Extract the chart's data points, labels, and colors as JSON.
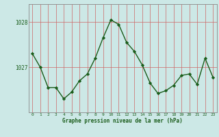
{
  "x": [
    0,
    1,
    2,
    3,
    4,
    5,
    6,
    7,
    8,
    9,
    10,
    11,
    12,
    13,
    14,
    15,
    16,
    17,
    18,
    19,
    20,
    21,
    22,
    23
  ],
  "y": [
    1027.3,
    1027.0,
    1026.55,
    1026.55,
    1026.3,
    1026.45,
    1026.7,
    1026.85,
    1027.2,
    1027.65,
    1028.05,
    1027.95,
    1027.55,
    1027.35,
    1027.05,
    1026.65,
    1026.42,
    1026.48,
    1026.6,
    1026.82,
    1026.85,
    1026.62,
    1027.2,
    1026.78
  ],
  "yticks": [
    1027,
    1028
  ],
  "xticks": [
    0,
    1,
    2,
    3,
    4,
    5,
    6,
    7,
    8,
    9,
    10,
    11,
    12,
    13,
    14,
    15,
    16,
    17,
    18,
    19,
    20,
    21,
    22,
    23
  ],
  "xlabel": "Graphe pression niveau de la mer (hPa)",
  "line_color": "#1a5c1a",
  "marker_color": "#1a5c1a",
  "bg_color": "#cce8e6",
  "grid_color_v": "#b0d4d0",
  "grid_color_h": "#cc4444",
  "axis_color": "#888888",
  "ylim": [
    1026.0,
    1028.4
  ],
  "xlim": [
    -0.5,
    23.5
  ],
  "figwidth": 3.2,
  "figheight": 2.0,
  "dpi": 100
}
